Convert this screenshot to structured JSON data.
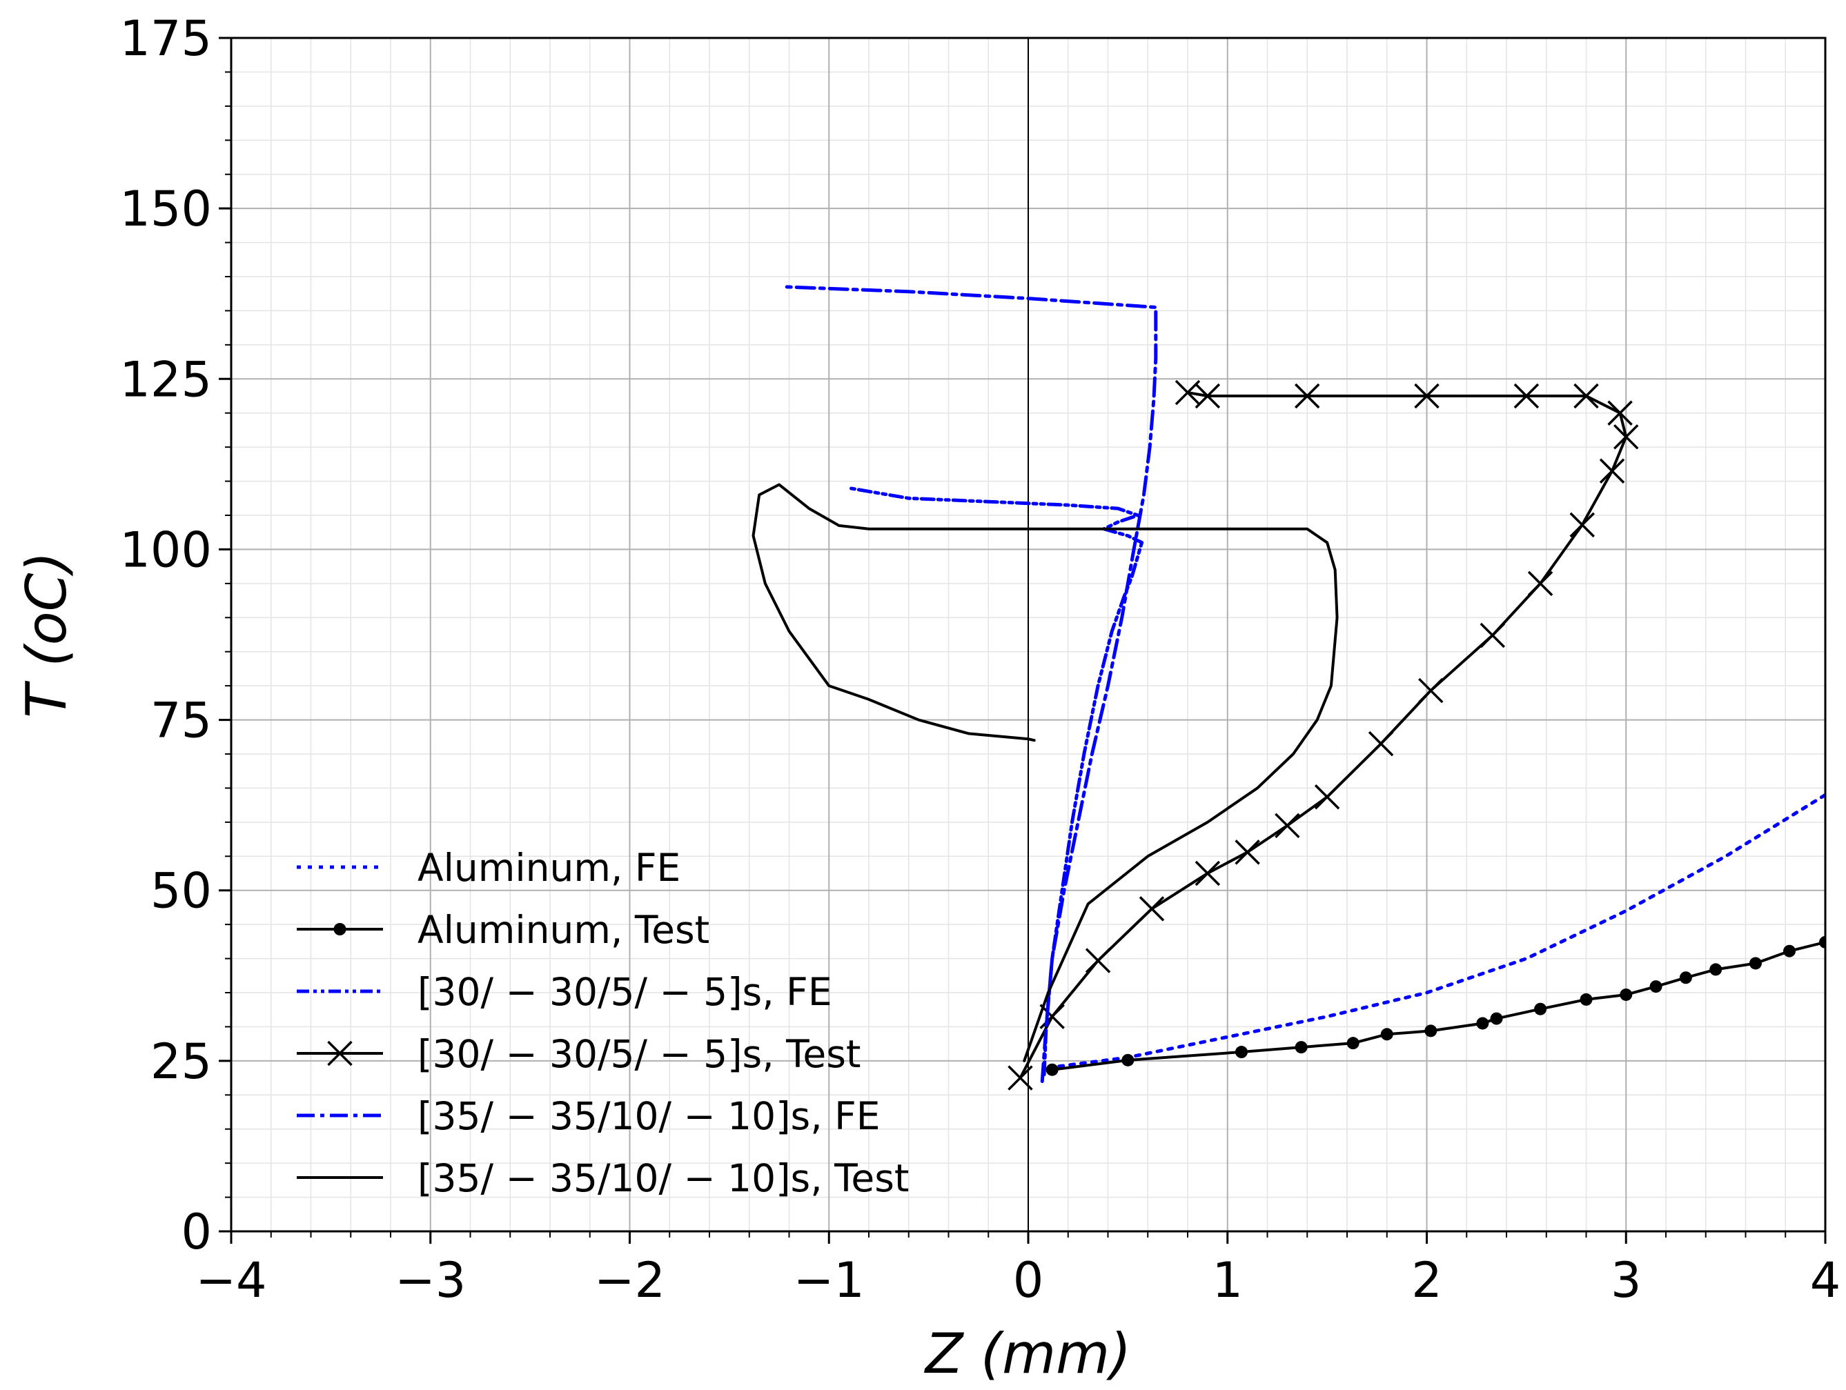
{
  "chart_data": {
    "type": "line",
    "title": "",
    "xlabel": "Z (mm)",
    "ylabel": "T (oC)",
    "xlim": [
      -4,
      4
    ],
    "ylim": [
      0,
      175
    ],
    "xticks": [
      -4,
      -3,
      -2,
      -1,
      0,
      1,
      2,
      3,
      4
    ],
    "yticks": [
      0,
      25,
      50,
      75,
      100,
      125,
      150,
      175
    ],
    "xtick_labels": [
      "−4",
      "−3",
      "−2",
      "−1",
      "0",
      "1",
      "2",
      "3",
      "4"
    ],
    "ytick_labels": [
      "0",
      "25",
      "50",
      "75",
      "100",
      "125",
      "150",
      "175"
    ],
    "grid": true,
    "minor_grid": true,
    "legend_position": "lower-left",
    "series": [
      {
        "name": "Aluminum, FE",
        "color": "#0000ff",
        "style": "dotted",
        "marker": "none",
        "x": [
          0.1,
          0.5,
          1.0,
          1.5,
          2.0,
          2.5,
          3.0,
          3.5,
          4.0
        ],
        "y": [
          24,
          25.5,
          28.5,
          31.5,
          35,
          40,
          47,
          55,
          64
        ]
      },
      {
        "name": "Aluminum, Test",
        "color": "#000000",
        "style": "solid",
        "marker": "dot",
        "x": [
          0.12,
          0.5,
          1.07,
          1.37,
          1.63,
          1.8,
          2.02,
          2.28,
          2.35,
          2.57,
          2.8,
          3.0,
          3.15,
          3.3,
          3.45,
          3.65,
          3.82,
          4.0
        ],
        "y": [
          23.7,
          25.1,
          26.3,
          27.0,
          27.6,
          28.9,
          29.4,
          30.5,
          31.2,
          32.6,
          34.0,
          34.7,
          35.9,
          37.2,
          38.4,
          39.3,
          41.1,
          42.4
        ]
      },
      {
        "name": "[30/ − 30/5/ − 5]s, FE",
        "color": "#0000ff",
        "style": "dash-dot-dot",
        "marker": "none",
        "x": [
          0.08,
          0.09,
          0.12,
          0.17,
          0.22,
          0.28,
          0.35,
          0.42,
          0.48,
          0.52,
          0.55,
          0.57,
          0.5,
          0.38,
          0.45,
          0.55,
          0.45,
          0.2,
          -0.2,
          -0.6,
          -0.9
        ],
        "y": [
          23,
          30,
          40,
          50,
          60,
          70,
          80,
          88,
          93,
          96,
          99,
          101,
          102,
          103,
          104,
          105,
          106,
          106.5,
          107,
          107.5,
          109
        ]
      },
      {
        "name": "[30/ − 30/5/ − 5]s, Test",
        "color": "#000000",
        "style": "solid",
        "marker": "x",
        "x": [
          -0.04,
          0.12,
          0.35,
          0.62,
          0.9,
          1.1,
          1.3,
          1.5,
          1.77,
          2.02,
          2.33,
          2.57,
          2.78,
          2.93,
          3.0,
          2.97,
          2.8,
          2.5,
          2.0,
          1.4,
          0.9,
          0.8
        ],
        "y": [
          22.5,
          31.5,
          39.7,
          47.3,
          52.5,
          55.6,
          59.5,
          63.7,
          71.5,
          79.3,
          87.4,
          95.0,
          103.6,
          111.5,
          116.5,
          120.0,
          122.5,
          122.5,
          122.5,
          122.5,
          122.5,
          123.0
        ]
      },
      {
        "name": "[35/ − 35/10/ − 10]s, FE",
        "color": "#0000ff",
        "style": "dash-dot",
        "marker": "none",
        "x": [
          0.07,
          0.09,
          0.12,
          0.18,
          0.25,
          0.32,
          0.4,
          0.47,
          0.53,
          0.58,
          0.61,
          0.63,
          0.64,
          0.64,
          0.0,
          -0.6,
          -1.22
        ],
        "y": [
          22,
          30,
          40,
          50,
          60,
          70,
          80,
          90,
          100,
          108,
          115,
          122,
          128,
          135.5,
          136.8,
          137.8,
          138.5
        ]
      },
      {
        "name": "[35/ − 35/10/ − 10]s, Test",
        "color": "#000000",
        "style": "solid",
        "marker": "none",
        "x": [
          -0.02,
          0.1,
          0.3,
          0.6,
          0.9,
          1.15,
          1.33,
          1.45,
          1.52,
          1.55,
          1.54,
          1.5,
          1.4,
          0.8,
          0.0,
          -0.8,
          -0.95,
          -1.1,
          -1.25,
          -1.35,
          -1.38,
          -1.32,
          -1.2,
          -1.0,
          -0.8,
          -0.55,
          -0.3,
          0.0,
          0.03
        ],
        "y": [
          25,
          35,
          48,
          55,
          60,
          65,
          70,
          75,
          80,
          90,
          97,
          101,
          103,
          103,
          103,
          103,
          103.5,
          106,
          109.5,
          108,
          102,
          95,
          88,
          80,
          78,
          75,
          73,
          72.2,
          72.0
        ]
      }
    ]
  }
}
